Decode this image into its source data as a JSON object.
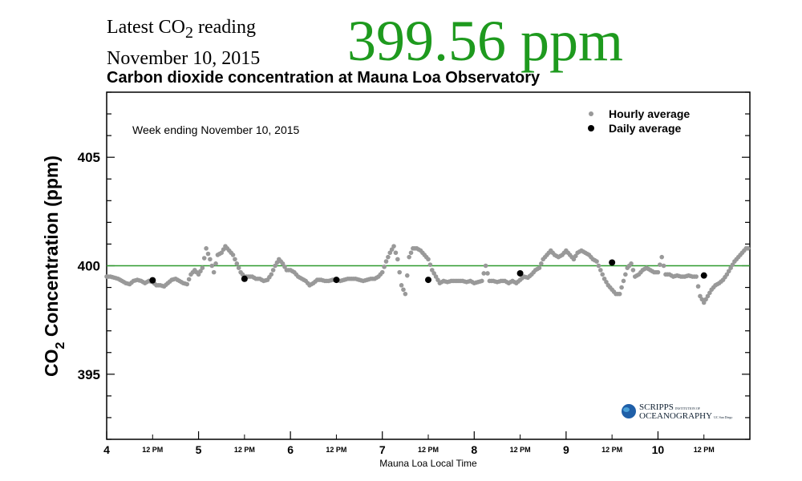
{
  "header": {
    "latest_label_pre": "Latest CO",
    "latest_label_sub": "2",
    "latest_label_post": " reading",
    "date": "November 10, 2015",
    "reading": "399.56 ppm",
    "reading_color": "#1e9a1e"
  },
  "logo": {
    "text1": "SCRIPPS",
    "text2": "INSTITUTION OF",
    "text3": "OCEANOGRAPHY",
    "text4": "UC San Diego"
  },
  "chart_data": {
    "type": "scatter",
    "title": "Carbon dioxide concentration at Mauna Loa Observatory",
    "annotation": "Week ending November 10, 2015",
    "xlabel": "Mauna Loa Local Time",
    "ylabel_pre": "CO",
    "ylabel_sub": "2",
    "ylabel_post": " Concentration (ppm)",
    "ylim": [
      392,
      408
    ],
    "yticks": [
      395,
      400,
      405
    ],
    "xlim_days": [
      4,
      11
    ],
    "xtick_days": [
      "4",
      "5",
      "6",
      "7",
      "8",
      "9",
      "10"
    ],
    "xtick_noon_label": "12 PM",
    "reference_line": 400,
    "reference_color": "#2e9a2e",
    "legend_position": "top-right",
    "series": [
      {
        "name": "Hourly average",
        "color": "#999999",
        "start_day": 4,
        "hourly": [
          399.5,
          399.5,
          399.45,
          399.4,
          399.3,
          399.2,
          399.15,
          399.3,
          399.35,
          399.3,
          399.2,
          399.3,
          399.25,
          399.1,
          399.1,
          399.05,
          399.2,
          399.35,
          399.4,
          399.3,
          399.2,
          399.15,
          399.6,
          399.8,
          399.6,
          399.9,
          400.8,
          400.3,
          399.7,
          400.5,
          400.6,
          400.9,
          400.7,
          400.5,
          400.1,
          399.7,
          399.5,
          399.5,
          399.5,
          399.4,
          399.4,
          399.3,
          399.35,
          399.6,
          400.0,
          400.3,
          400.1,
          399.8,
          399.8,
          399.7,
          399.5,
          399.4,
          399.3,
          399.1,
          399.2,
          399.35,
          399.35,
          399.3,
          399.3,
          399.35,
          399.35,
          399.3,
          399.35,
          399.4,
          399.4,
          399.4,
          399.35,
          399.3,
          399.35,
          399.4,
          399.4,
          399.5,
          399.7,
          400.2,
          400.6,
          400.9,
          400.3,
          399.1,
          398.7,
          400.4,
          400.8,
          400.8,
          400.7,
          400.5,
          400.3,
          399.8,
          399.5,
          399.2,
          399.3,
          399.25,
          399.3,
          399.3,
          399.3,
          399.3,
          399.25,
          399.3,
          399.2,
          399.25,
          399.3,
          400.0,
          399.3,
          399.3,
          399.25,
          399.3,
          399.3,
          399.2,
          399.3,
          399.2,
          399.35,
          399.5,
          399.45,
          399.6,
          399.8,
          399.9,
          400.3,
          400.5,
          400.7,
          400.5,
          400.4,
          400.5,
          400.7,
          400.5,
          400.3,
          400.6,
          400.7,
          400.6,
          400.5,
          400.3,
          400.2,
          399.8,
          399.4,
          399.1,
          398.9,
          398.7,
          398.7,
          399.3,
          399.9,
          400.1,
          399.5,
          399.6,
          399.8,
          399.9,
          399.8,
          399.7,
          399.7,
          400.4,
          399.6,
          399.6,
          399.5,
          399.55,
          399.5,
          399.5,
          399.55,
          399.5,
          399.5,
          398.6,
          398.3,
          398.6,
          398.9,
          399.1,
          399.2,
          399.35,
          399.6,
          399.9,
          400.2,
          400.4,
          400.6,
          400.8
        ]
      },
      {
        "name": "Daily average",
        "color": "#000000",
        "points": [
          {
            "day": 4.5,
            "value": 399.33
          },
          {
            "day": 5.5,
            "value": 399.4
          },
          {
            "day": 6.5,
            "value": 399.35
          },
          {
            "day": 7.5,
            "value": 399.35
          },
          {
            "day": 8.5,
            "value": 399.65
          },
          {
            "day": 9.5,
            "value": 400.15
          },
          {
            "day": 10.5,
            "value": 399.55
          }
        ]
      }
    ]
  }
}
